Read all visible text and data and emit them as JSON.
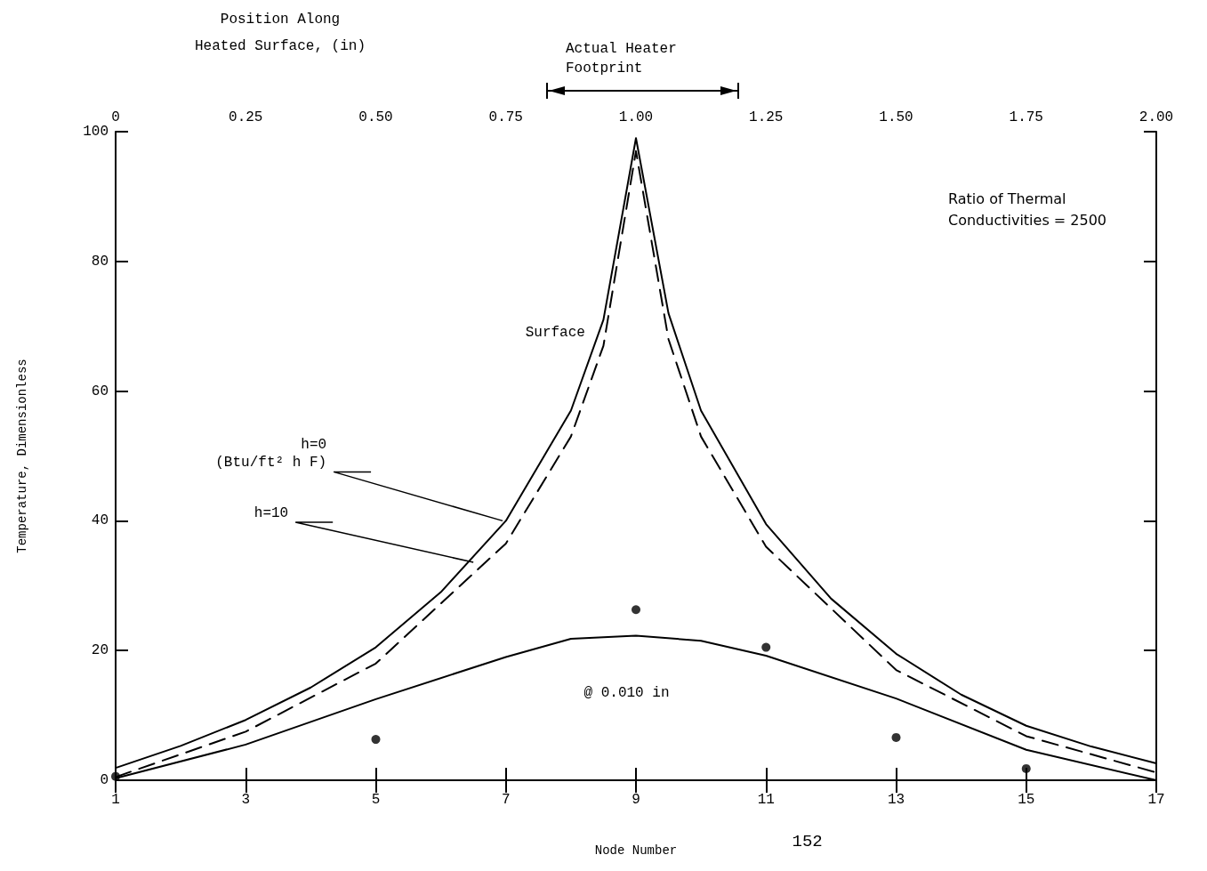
{
  "chart_data": {
    "type": "line",
    "x2label": "Position Along\nHeated Surface, (in)",
    "xlabel": "Node Number",
    "ylabel": "Temperature, Dimensionless",
    "xlim": [
      1,
      17
    ],
    "xticks": [
      1,
      3,
      5,
      7,
      9,
      11,
      13,
      15,
      17
    ],
    "x2lim": [
      0,
      2
    ],
    "x2ticks": [
      0,
      0.25,
      {
        "value": 0.5,
        "label": "0.50"
      },
      0.75,
      {
        "value": 1,
        "label": "1.00"
      },
      1.25,
      {
        "value": 1.5,
        "label": "1.50"
      },
      1.75,
      {
        "value": 2,
        "label": "2.00"
      }
    ],
    "ylim": [
      0,
      100
    ],
    "yticks": [
      0,
      20,
      40,
      60,
      80,
      100
    ],
    "grid": false,
    "series": [
      {
        "color": "#000000",
        "line_style": "solid",
        "marker": "none",
        "x": [
          1,
          2,
          3,
          4,
          5,
          6,
          7,
          8,
          8.5,
          9,
          9.5,
          10,
          11,
          12,
          13,
          14,
          15,
          16,
          17
        ],
        "values": [
          1.9,
          5.3,
          9.3,
          14.3,
          20.5,
          29,
          40,
          57,
          71,
          99,
          72,
          57,
          39.5,
          28,
          19.5,
          13.2,
          8.4,
          5.2,
          2.6
        ]
      },
      {
        "color": "#000000",
        "line_style": "dashed",
        "marker": "none",
        "x": [
          1,
          3,
          5,
          7,
          8,
          8.5,
          9,
          9.5,
          10,
          11,
          13,
          15,
          17
        ],
        "values": [
          0.5,
          7.5,
          18,
          36.5,
          53,
          67,
          97,
          68,
          53,
          36,
          17,
          6.8,
          1.2
        ]
      },
      {
        "color": "#000000",
        "line_style": "solid",
        "marker": "none",
        "x": [
          1,
          3,
          5,
          7,
          8,
          9,
          10,
          11,
          13,
          15,
          17
        ],
        "values": [
          0.3,
          5.5,
          12.5,
          19,
          21.8,
          22.3,
          21.5,
          19.2,
          12.6,
          4.7,
          0
        ]
      },
      {
        "type": "scatter",
        "color": "#000000",
        "marker": "circle",
        "x": [
          1,
          5,
          9,
          11,
          13,
          15
        ],
        "values": [
          0.6,
          6.3,
          26.3,
          20.5,
          6.6,
          1.8
        ]
      }
    ],
    "annotations": [
      "Actual Heater\nFootprint",
      "Surface",
      {
        "text": "h=0\n(Btu/ft² h F)",
        "x": 6.95,
        "y": 40
      },
      {
        "text": "h=10",
        "x": 6.5,
        "y": 33.6
      },
      "@ 0.010 in",
      "Ratio of Thermal\nConductivities = 2500",
      "152"
    ]
  }
}
